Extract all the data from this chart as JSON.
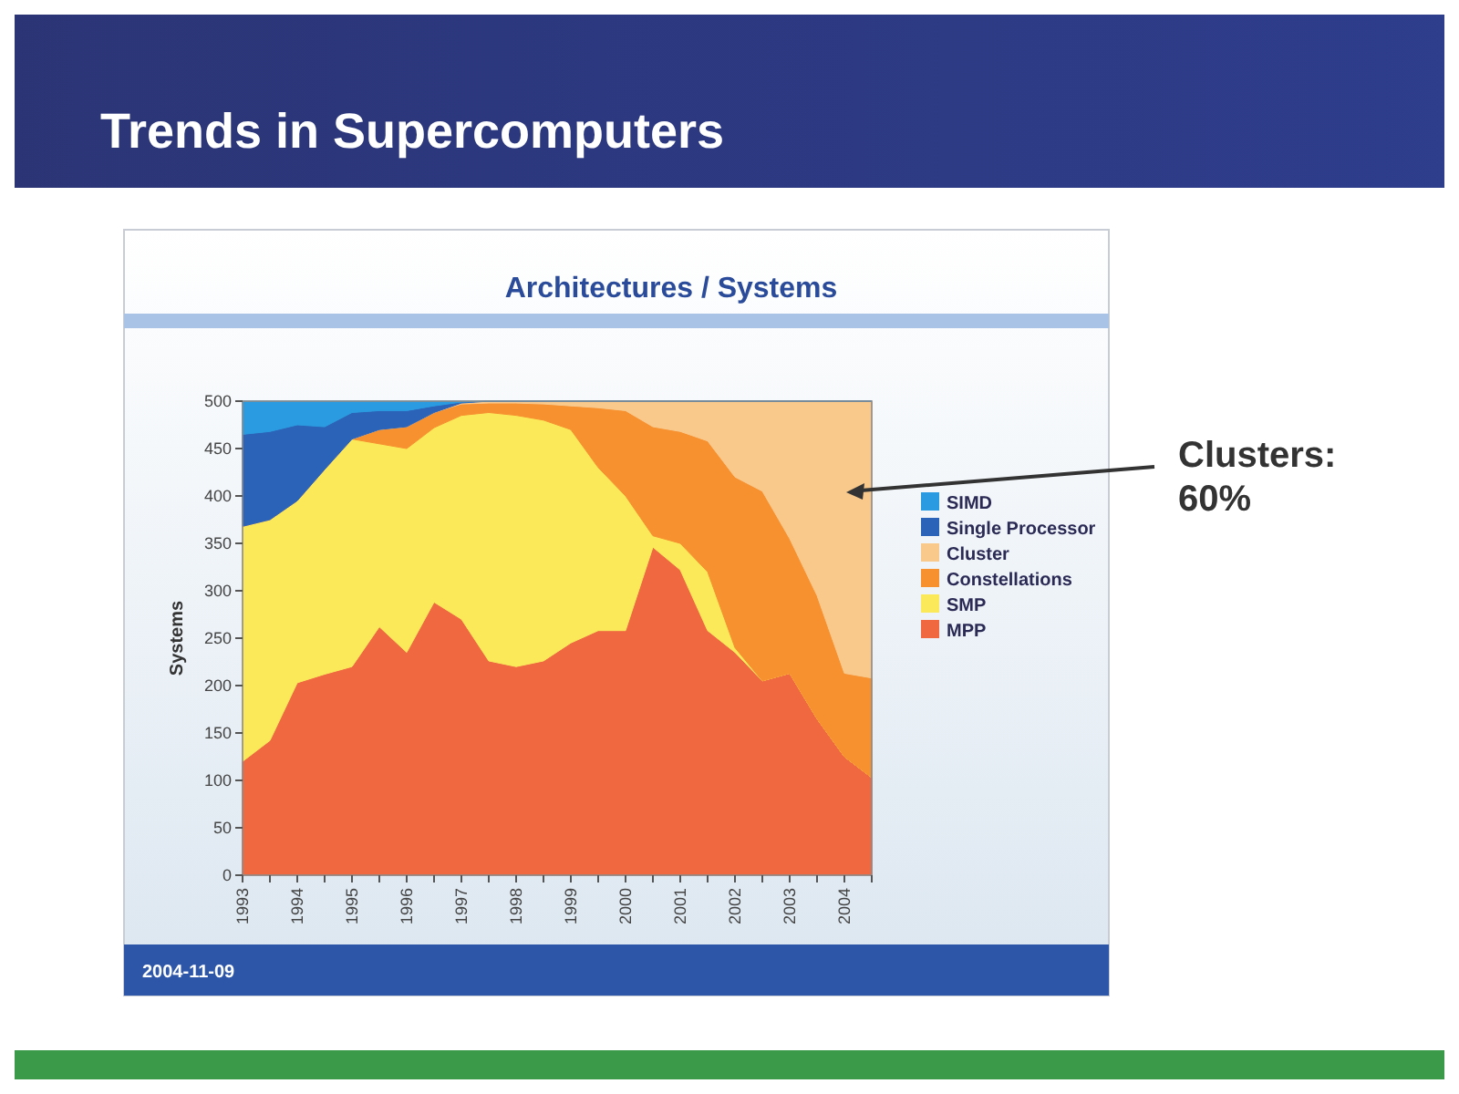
{
  "chart_data": {
    "type": "area",
    "stacked": true,
    "title": "Trends in Supercomputers",
    "subtitle": "Architectures / Systems",
    "ylabel": "Systems",
    "x": [
      1993,
      1993.5,
      1994,
      1994.5,
      1995,
      1995.5,
      1996,
      1996.5,
      1997,
      1997.5,
      1998,
      1998.5,
      1999,
      1999.5,
      2000,
      2000.5,
      2001,
      2001.5,
      2002,
      2002.5,
      2003,
      2003.5,
      2004,
      2004.5
    ],
    "series": [
      {
        "name": "MPP",
        "color": "#ef6840",
        "values": [
          120,
          142,
          203,
          212,
          220,
          262,
          235,
          288,
          270,
          226,
          220,
          226,
          245,
          258,
          258,
          346,
          322,
          258,
          235,
          205,
          213,
          165,
          125,
          103
        ]
      },
      {
        "name": "SMP",
        "color": "#fbe95a",
        "values": [
          248,
          233,
          192,
          216,
          240,
          193,
          215,
          184,
          215,
          262,
          265,
          254,
          225,
          172,
          142,
          12,
          28,
          62,
          5,
          0,
          0,
          0,
          0,
          0
        ]
      },
      {
        "name": "Constellations",
        "color": "#f7902e",
        "values": [
          0,
          0,
          0,
          0,
          0,
          15,
          23,
          16,
          12,
          10,
          13,
          17,
          25,
          63,
          90,
          115,
          118,
          138,
          180,
          200,
          142,
          130,
          88,
          105
        ]
      },
      {
        "name": "Cluster",
        "color": "#f9c98c",
        "values": [
          0,
          0,
          0,
          0,
          0,
          0,
          0,
          0,
          1,
          2,
          2,
          3,
          5,
          7,
          10,
          27,
          32,
          42,
          80,
          95,
          145,
          205,
          287,
          292
        ]
      },
      {
        "name": "Single Processor",
        "color": "#2b63b8",
        "values": [
          97,
          93,
          80,
          45,
          28,
          20,
          17,
          7,
          1,
          0,
          0,
          0,
          0,
          0,
          0,
          0,
          0,
          0,
          0,
          0,
          0,
          0,
          0,
          0
        ]
      },
      {
        "name": "SIMD",
        "color": "#2a9be0",
        "values": [
          35,
          32,
          25,
          27,
          12,
          10,
          10,
          5,
          1,
          0,
          0,
          0,
          0,
          0,
          0,
          0,
          0,
          0,
          0,
          0,
          0,
          0,
          0,
          0
        ]
      }
    ],
    "xlim": [
      1993,
      2004.5
    ],
    "xticks": [
      1993,
      {
        "value": 1993.5,
        "label": null
      },
      1994,
      {
        "value": 1994.5,
        "label": null
      },
      1995,
      {
        "value": 1995.5,
        "label": null
      },
      1996,
      {
        "value": 1996.5,
        "label": null
      },
      1997,
      {
        "value": 1997.5,
        "label": null
      },
      1998,
      {
        "value": 1998.5,
        "label": null
      },
      1999,
      {
        "value": 1999.5,
        "label": null
      },
      2000,
      {
        "value": 2000.5,
        "label": null
      },
      2001,
      {
        "value": 2001.5,
        "label": null
      },
      2002,
      {
        "value": 2002.5,
        "label": null
      },
      2003,
      {
        "value": 2003.5,
        "label": null
      },
      2004,
      {
        "value": 2004.5,
        "label": null
      }
    ],
    "ylim": [
      0,
      500
    ],
    "yticks": [
      0,
      50,
      100,
      150,
      200,
      250,
      300,
      350,
      400,
      450,
      500
    ],
    "legend": "right",
    "grid": false,
    "annotations": [
      "Clusters: 60%",
      "2004-11-09"
    ]
  }
}
